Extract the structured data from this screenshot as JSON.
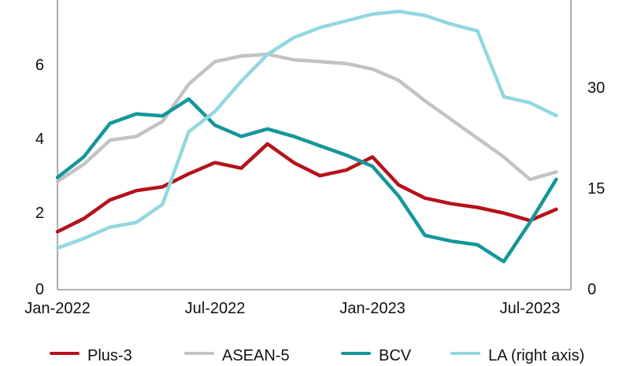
{
  "chart_data": {
    "type": "line",
    "categories": [
      "Jan-2022",
      "Feb-2022",
      "Mar-2022",
      "Apr-2022",
      "May-2022",
      "Jun-2022",
      "Jul-2022",
      "Aug-2022",
      "Sep-2022",
      "Oct-2022",
      "Nov-2022",
      "Dec-2022",
      "Jan-2023",
      "Feb-2023",
      "Mar-2023",
      "Apr-2023",
      "May-2023",
      "Jun-2023",
      "Jul-2023",
      "Aug-2023"
    ],
    "x_tick_labels": [
      "Jan-2022",
      "Jul-2022",
      "Jan-2023",
      "Jul-2023"
    ],
    "x_tick_month_index": [
      0,
      6,
      12,
      18
    ],
    "left_axis": {
      "ticks": [
        "0",
        "2",
        "4",
        "6"
      ],
      "range": [
        0,
        7.75
      ]
    },
    "right_axis": {
      "ticks": [
        "0",
        "15",
        "30"
      ],
      "range": [
        0,
        43.1
      ]
    },
    "axis_color": "#808080",
    "grid": false,
    "legend_position": "bottom",
    "series": [
      {
        "name": "Plus-3",
        "axis": "left",
        "color": "#b5121b",
        "values": [
          1.55,
          1.9,
          2.4,
          2.65,
          2.75,
          3.1,
          3.4,
          3.25,
          3.9,
          3.4,
          3.05,
          3.2,
          3.55,
          2.8,
          2.45,
          2.3,
          2.2,
          2.05,
          1.85,
          2.15
        ]
      },
      {
        "name": "ASEAN-5",
        "axis": "left",
        "color": "#c3c3c4",
        "values": [
          2.9,
          3.35,
          4.0,
          4.1,
          4.5,
          5.5,
          6.1,
          6.25,
          6.3,
          6.15,
          6.1,
          6.05,
          5.9,
          5.6,
          5.05,
          4.55,
          4.05,
          3.55,
          2.95,
          3.15
        ]
      },
      {
        "name": "BCV",
        "axis": "left",
        "color": "#14969b",
        "values": [
          3.0,
          3.55,
          4.45,
          4.7,
          4.65,
          5.1,
          4.4,
          4.1,
          4.3,
          4.1,
          3.85,
          3.6,
          3.3,
          2.5,
          1.45,
          1.3,
          1.2,
          0.75,
          1.8,
          2.95
        ]
      },
      {
        "name": "LA (right axis)",
        "axis": "right",
        "color": "#92d8e0",
        "values": [
          6.2,
          7.6,
          9.3,
          10.0,
          12.7,
          23.5,
          26.5,
          31.0,
          35.0,
          37.5,
          39.0,
          40.0,
          41.0,
          41.4,
          40.8,
          39.5,
          38.5,
          28.7,
          27.8,
          25.9
        ]
      }
    ]
  }
}
